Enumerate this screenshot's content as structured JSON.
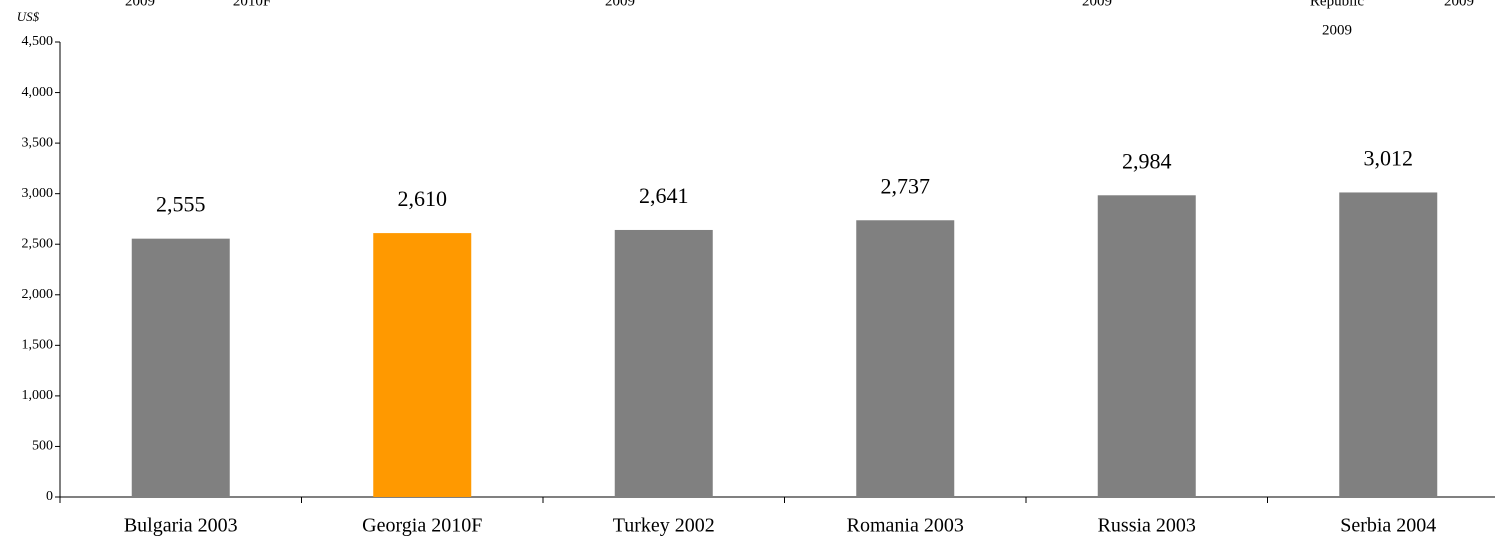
{
  "top_fragments": [
    "2009",
    "2010F",
    "2009",
    "2009",
    "Republic",
    "2009",
    "2009"
  ],
  "chart_data": {
    "type": "bar",
    "y_label": "US$",
    "categories": [
      "Bulgaria 2003",
      "Georgia 2010F",
      "Turkey 2002",
      "Romania 2003",
      "Russia 2003",
      "Serbia 2004"
    ],
    "values": [
      2555,
      2610,
      2641,
      2737,
      2984,
      3012
    ],
    "value_labels": [
      "2,555",
      "2,610",
      "2,641",
      "2,737",
      "2,984",
      "3,012"
    ],
    "colors": [
      "#808080",
      "#ff9900",
      "#808080",
      "#808080",
      "#808080",
      "#808080"
    ],
    "ylim": [
      0,
      4500
    ],
    "yticks": [
      0,
      500,
      {
        "value": 1000,
        "label": "1,000"
      },
      {
        "value": 1500,
        "label": "1,500"
      },
      {
        "value": 2000,
        "label": "2,000"
      },
      {
        "value": 2500,
        "label": "2,500"
      },
      {
        "value": 3000,
        "label": "3,000"
      },
      {
        "value": 3500,
        "label": "3,500"
      },
      {
        "value": 4000,
        "label": "4,000"
      },
      {
        "value": 4500,
        "label": "4,500"
      }
    ],
    "grid": false
  }
}
